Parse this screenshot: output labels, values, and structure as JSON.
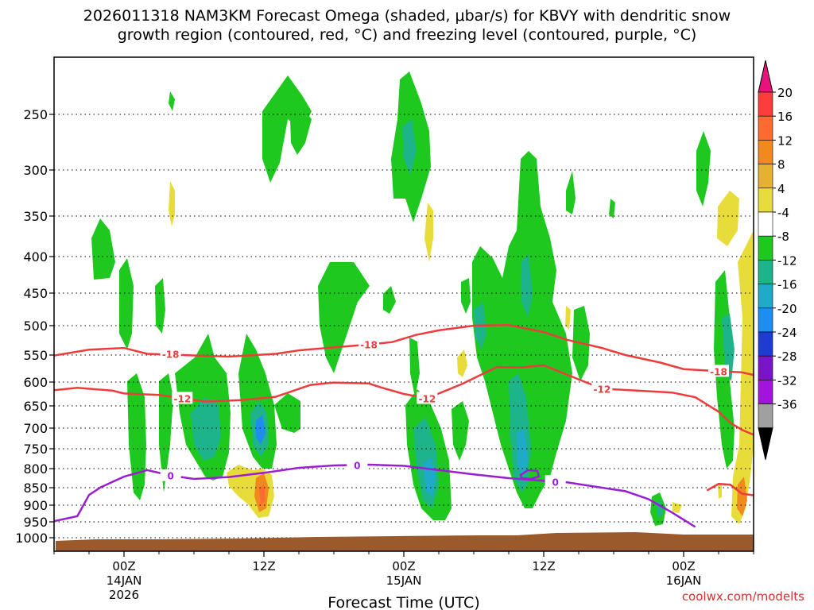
{
  "chart_data": {
    "type": "time-height",
    "title_line1": "2026011318 NAM3KM Forecast Omega (shaded, μbar/s) for KBVY with dendritic snow",
    "title_line2": "growth region (contoured, red, °C) and freezing level (contoured, purple, °C)",
    "xlabel": "Forecast Time (UTC)",
    "credit": "coolwx.com/modelts",
    "x_ticks": [
      {
        "hour": 6,
        "l1": "00Z",
        "l2": "14JAN",
        "l3": "2026"
      },
      {
        "hour": 18,
        "l1": "12Z",
        "l2": "",
        "l3": ""
      },
      {
        "hour": 30,
        "l1": "00Z",
        "l2": "15JAN",
        "l3": ""
      },
      {
        "hour": 42,
        "l1": "12Z",
        "l2": "",
        "l3": ""
      },
      {
        "hour": 54,
        "l1": "00Z",
        "l2": "16JAN",
        "l3": ""
      }
    ],
    "y_ticks": [
      {
        "p": 250,
        "label": "250"
      },
      {
        "p": 300,
        "label": "300"
      },
      {
        "p": 350,
        "label": "350"
      },
      {
        "p": 400,
        "label": "400"
      },
      {
        "p": 450,
        "label": "450"
      },
      {
        "p": 500,
        "label": "500"
      },
      {
        "p": 550,
        "label": "550"
      },
      {
        "p": 600,
        "label": "600"
      },
      {
        "p": 650,
        "label": "650"
      },
      {
        "p": 700,
        "label": "700"
      },
      {
        "p": 750,
        "label": "750"
      },
      {
        "p": 800,
        "label": "800"
      },
      {
        "p": 850,
        "label": "850"
      },
      {
        "p": 900,
        "label": "900"
      },
      {
        "p": 950,
        "label": "950"
      },
      {
        "p": 1000,
        "label": "1000"
      }
    ],
    "colorbar": {
      "levels": [
        "20",
        "16",
        "12",
        "8",
        "4",
        "-4",
        "-8",
        "-12",
        "-16",
        "-20",
        "-24",
        "-28",
        "-32",
        "-36"
      ],
      "colors": [
        "#ff3b3b",
        "#ff6a33",
        "#f08a1e",
        "#e6b030",
        "#e8dc3a",
        "#ffffff",
        "#1ec81e",
        "#1eb48a",
        "#1eaac8",
        "#1e8cf0",
        "#1e3cd2",
        "#7a14c8",
        "#a014dc",
        "#a0a0a0"
      ],
      "top_color": "#e6147a",
      "bottom_color": "#000000"
    },
    "contours": [
      {
        "name": "dgz-18",
        "color": "#ee3c3c",
        "label": "-18",
        "points": [
          [
            0,
            551
          ],
          [
            3,
            541
          ],
          [
            6,
            538
          ],
          [
            8,
            548
          ],
          [
            11,
            550
          ],
          [
            15,
            553
          ],
          [
            19,
            548
          ],
          [
            21,
            542
          ],
          [
            24,
            537
          ],
          [
            27,
            532
          ],
          [
            29,
            528
          ],
          [
            31,
            516
          ],
          [
            33,
            508
          ],
          [
            36,
            500
          ],
          [
            39,
            499
          ],
          [
            42,
            511
          ],
          [
            44,
            524
          ],
          [
            47,
            538
          ],
          [
            49,
            550
          ],
          [
            52,
            564
          ],
          [
            54,
            576
          ],
          [
            57,
            580
          ],
          [
            59,
            582
          ],
          [
            60,
            587
          ]
        ]
      },
      {
        "name": "dgz-12",
        "color": "#ee3c3c",
        "label": "-12",
        "points": [
          [
            0,
            617
          ],
          [
            2,
            612
          ],
          [
            5,
            618
          ],
          [
            6,
            624
          ],
          [
            9,
            627
          ],
          [
            11,
            634
          ],
          [
            13,
            641
          ],
          [
            16,
            638
          ],
          [
            19,
            631
          ],
          [
            22,
            606
          ],
          [
            24,
            601
          ],
          [
            27,
            603
          ],
          [
            28,
            611
          ],
          [
            30,
            625
          ],
          [
            32,
            634
          ],
          [
            35,
            604
          ],
          [
            38,
            572
          ],
          [
            40,
            573
          ],
          [
            42,
            569
          ],
          [
            45,
            595
          ],
          [
            47,
            614
          ],
          [
            50,
            618
          ],
          [
            53,
            622
          ],
          [
            55,
            632
          ],
          [
            57,
            663
          ],
          [
            58,
            688
          ],
          [
            59,
            704
          ],
          [
            60,
            716
          ]
        ]
      },
      {
        "name": "dgz-12-low",
        "color": "#ee3c3c",
        "label": "",
        "points": [
          [
            56,
            858
          ],
          [
            57,
            840
          ],
          [
            58,
            842
          ],
          [
            59,
            867
          ],
          [
            60,
            872
          ]
        ]
      },
      {
        "name": "freezing-0",
        "color": "#9a1ed2",
        "label": "0",
        "points": [
          [
            0,
            948
          ],
          [
            2,
            933
          ],
          [
            3,
            871
          ],
          [
            4,
            849
          ],
          [
            6,
            821
          ],
          [
            8,
            804
          ],
          [
            10,
            818
          ],
          [
            12,
            827
          ],
          [
            15,
            822
          ],
          [
            18,
            811
          ],
          [
            21,
            798
          ],
          [
            24,
            792
          ],
          [
            27,
            790
          ],
          [
            30,
            793
          ],
          [
            33,
            804
          ],
          [
            36,
            815
          ],
          [
            39,
            825
          ],
          [
            42,
            832
          ],
          [
            44,
            836
          ],
          [
            47,
            850
          ],
          [
            49,
            860
          ],
          [
            51,
            883
          ],
          [
            53,
            922
          ],
          [
            55,
            966
          ]
        ]
      }
    ],
    "omega_regions_note": "shaded omega cells: mostly -4 to -16 μbar/s (green/teal/blue) columns between ~14JAN 00Z and 16JAN 00Z, small positive (yellow/orange) cells near 850-900 hPa around 12Z 14JAN and 06Z 16JAN"
  },
  "colors": {
    "terrain": "#9a5a2c",
    "grid": "#000000",
    "green": "#1ec81e",
    "teal": "#1eb48a",
    "cyan": "#1eaac8",
    "blue": "#1e8cf0",
    "yellow": "#e8dc3a",
    "orange": "#f08a1e",
    "red": "#ff6a33",
    "credit": "#d83030"
  }
}
